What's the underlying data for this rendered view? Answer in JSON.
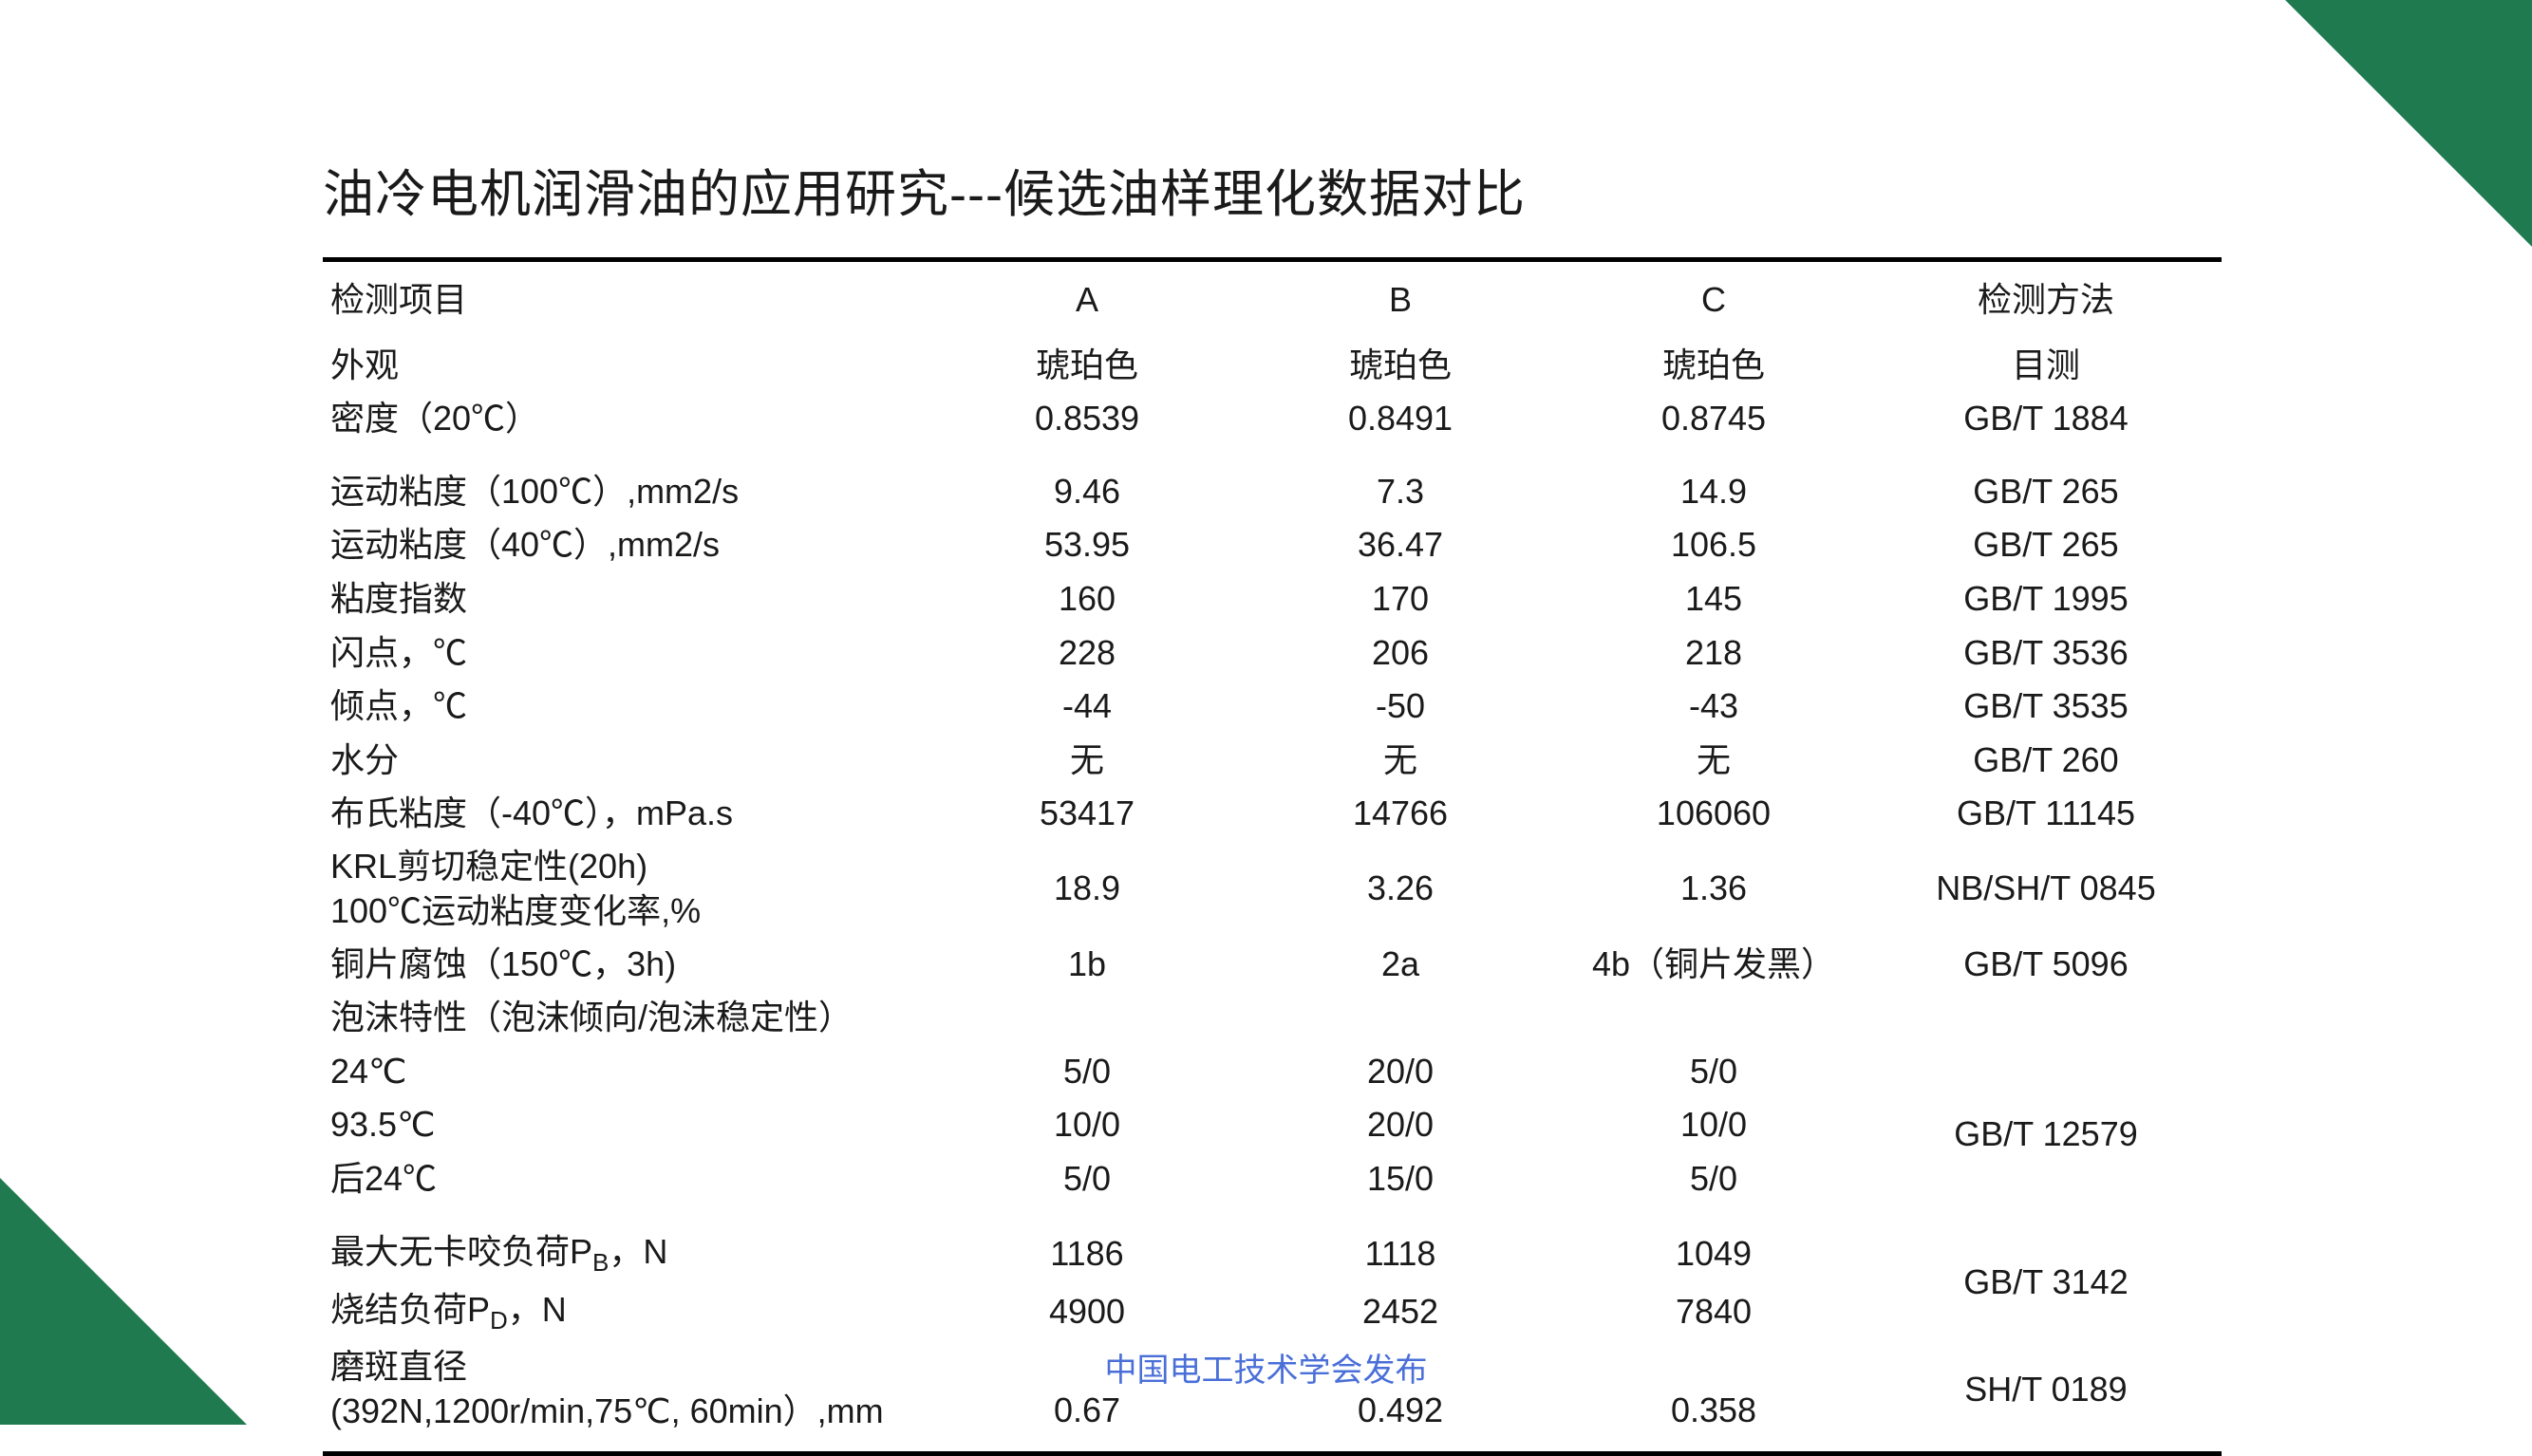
{
  "title": "油冷电机润滑油的应用研究---候选油样理化数据对比",
  "footer": "中国电工技术学会发布",
  "columns": {
    "item": "检测项目",
    "a": "A",
    "b": "B",
    "c": "C",
    "method": "检测方法"
  },
  "colors": {
    "accent": "#1f7a4f",
    "text": "#1a1a1a",
    "footer": "#4a6fd8",
    "bg": "#ffffff",
    "border": "#000000"
  },
  "rows": {
    "r0": {
      "label": "外观",
      "a": "琥珀色",
      "b": "琥珀色",
      "c": "琥珀色",
      "method": "目测"
    },
    "r1": {
      "label": "密度（20℃）",
      "a": "0.8539",
      "b": "0.8491",
      "c": "0.8745",
      "method": "GB/T 1884"
    },
    "r2": {
      "label": "运动粘度（100℃）,mm2/s",
      "a": "9.46",
      "b": "7.3",
      "c": "14.9",
      "method": "GB/T 265"
    },
    "r3": {
      "label": "运动粘度（40℃）,mm2/s",
      "a": "53.95",
      "b": "36.47",
      "c": "106.5",
      "method": "GB/T 265"
    },
    "r4": {
      "label": "粘度指数",
      "a": "160",
      "b": "170",
      "c": "145",
      "method": "GB/T 1995"
    },
    "r5": {
      "label": "闪点，℃",
      "a": "228",
      "b": "206",
      "c": "218",
      "method": "GB/T 3536"
    },
    "r6": {
      "label": "倾点，℃",
      "a": "-44",
      "b": "-50",
      "c": "-43",
      "method": "GB/T 3535"
    },
    "r7": {
      "label": "水分",
      "a": "无",
      "b": "无",
      "c": "无",
      "method": "GB/T 260"
    },
    "r8": {
      "label": "布氏粘度（-40℃），mPa.s",
      "a": "53417",
      "b": "14766",
      "c": "106060",
      "method": "GB/T 11145"
    },
    "r9": {
      "label1": "KRL剪切稳定性(20h)",
      "label2": "100℃运动粘度变化率,%",
      "a": "18.9",
      "b": "3.26",
      "c": "1.36",
      "method": "NB/SH/T 0845"
    },
    "r10": {
      "label": "铜片腐蚀（150℃，3h)",
      "a": "1b",
      "b": "2a",
      "c": "4b（铜片发黑）",
      "method": "GB/T 5096"
    },
    "r11": {
      "label": "泡沫特性（泡沫倾向/泡沫稳定性）"
    },
    "r12": {
      "label": "24℃",
      "a": "5/0",
      "b": "20/0",
      "c": "5/0",
      "method": "GB/T 12579"
    },
    "r13": {
      "label": "93.5℃",
      "a": "10/0",
      "b": "20/0",
      "c": "10/0"
    },
    "r14": {
      "label": "后24℃",
      "a": "5/0",
      "b": "15/0",
      "c": "5/0"
    },
    "r15": {
      "label_pre": "最大无卡咬负荷P",
      "label_sub": "B",
      "label_post": "，N",
      "a": "1186",
      "b": "1118",
      "c": "1049",
      "method": "GB/T 3142"
    },
    "r16": {
      "label_pre": "烧结负荷P",
      "label_sub": "D",
      "label_post": "，N",
      "a": "4900",
      "b": "2452",
      "c": "7840"
    },
    "r17": {
      "label1": "磨斑直径",
      "label2": "(392N,1200r/min,75℃, 60min）,mm",
      "a": "0.67",
      "b": "0.492",
      "c": "0.358",
      "method": "SH/T 0189"
    }
  }
}
